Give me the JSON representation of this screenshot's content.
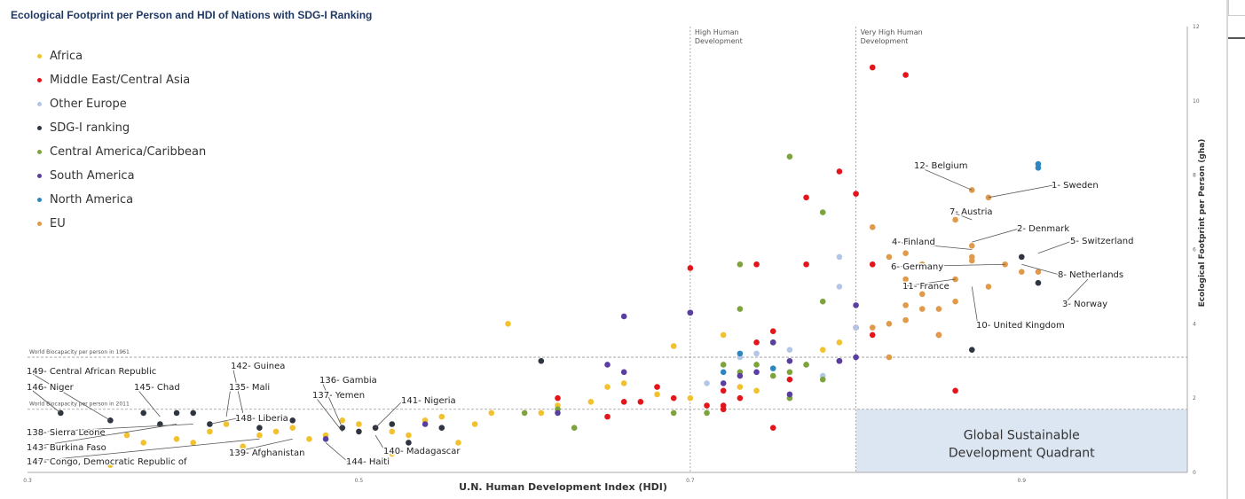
{
  "chart_data": {
    "type": "scatter",
    "title": "Ecological Footprint per Person and HDI of Nations with SDG-I Ranking",
    "xlabel": "U.N. Human Development Index (HDI)",
    "ylabel": "Ecological Footprint per Person (gha)",
    "xlim": [
      0.3,
      1.0
    ],
    "ylim": [
      0,
      12
    ],
    "x_ticks": [
      "0.3",
      "0.5",
      "0.7",
      "0.9"
    ],
    "y_ticks": [
      "0",
      "2",
      "4",
      "6",
      "8",
      "10",
      "12"
    ],
    "grid": false,
    "legend_position": "top-left",
    "regions": [
      {
        "label": "High Human Development",
        "x_start": 0.7
      },
      {
        "label": "Very High Human Development",
        "x_start": 0.8
      }
    ],
    "reference_lines": [
      {
        "label": "World Biocapacity per person in 1961",
        "y": 3.1
      },
      {
        "label": "World Biocapacity per person in 2011",
        "y": 1.7
      }
    ],
    "quadrant": {
      "label_line1": "Global Sustainable",
      "label_line2": "Development Quadrant",
      "x_range": [
        0.8,
        1.0
      ],
      "y_range": [
        0,
        1.7
      ]
    },
    "series": [
      {
        "name": "Africa",
        "color": "#f2c12e",
        "points": [
          [
            0.35,
            0.2
          ],
          [
            0.37,
            0.8
          ],
          [
            0.39,
            0.9
          ],
          [
            0.41,
            1.1
          ],
          [
            0.42,
            1.3
          ],
          [
            0.43,
            0.7
          ],
          [
            0.44,
            1.0
          ],
          [
            0.45,
            1.1
          ],
          [
            0.46,
            1.2
          ],
          [
            0.47,
            0.9
          ],
          [
            0.48,
            1.0
          ],
          [
            0.49,
            1.4
          ],
          [
            0.5,
            1.3
          ],
          [
            0.51,
            1.2
          ],
          [
            0.52,
            1.1
          ],
          [
            0.53,
            1.0
          ],
          [
            0.55,
            1.5
          ],
          [
            0.57,
            1.3
          ],
          [
            0.58,
            1.6
          ],
          [
            0.59,
            4.0
          ],
          [
            0.61,
            1.6
          ],
          [
            0.62,
            1.8
          ],
          [
            0.64,
            1.9
          ],
          [
            0.65,
            2.3
          ],
          [
            0.66,
            2.4
          ],
          [
            0.68,
            2.1
          ],
          [
            0.69,
            3.4
          ],
          [
            0.7,
            2.0
          ],
          [
            0.72,
            3.7
          ],
          [
            0.73,
            2.3
          ],
          [
            0.74,
            2.2
          ],
          [
            0.79,
            3.5
          ],
          [
            0.78,
            3.3
          ],
          [
            0.36,
            1.0
          ],
          [
            0.4,
            0.8
          ],
          [
            0.52,
            0.5
          ],
          [
            0.54,
            1.4
          ],
          [
            0.56,
            0.8
          ]
        ]
      },
      {
        "name": "Middle East/Central Asia",
        "color": "#e3141a",
        "points": [
          [
            0.81,
            10.9
          ],
          [
            0.83,
            10.7
          ],
          [
            0.79,
            8.1
          ],
          [
            0.8,
            7.5
          ],
          [
            0.77,
            7.4
          ],
          [
            0.7,
            5.5
          ],
          [
            0.74,
            5.6
          ],
          [
            0.77,
            5.6
          ],
          [
            0.81,
            5.6
          ],
          [
            0.8,
            3.9
          ],
          [
            0.81,
            3.7
          ],
          [
            0.75,
            3.8
          ],
          [
            0.74,
            3.5
          ],
          [
            0.72,
            2.2
          ],
          [
            0.69,
            2.0
          ],
          [
            0.67,
            1.9
          ],
          [
            0.66,
            1.9
          ],
          [
            0.62,
            2.0
          ],
          [
            0.65,
            1.5
          ],
          [
            0.72,
            1.8
          ],
          [
            0.71,
            1.8
          ],
          [
            0.72,
            1.7
          ],
          [
            0.68,
            2.3
          ],
          [
            0.76,
            2.5
          ],
          [
            0.85,
            3.7
          ],
          [
            0.86,
            2.2
          ],
          [
            0.73,
            2.0
          ],
          [
            0.75,
            1.2
          ]
        ]
      },
      {
        "name": "Other Europe",
        "color": "#b4c6e7",
        "points": [
          [
            0.79,
            5.8
          ],
          [
            0.79,
            5.0
          ],
          [
            0.8,
            3.9
          ],
          [
            0.76,
            3.3
          ],
          [
            0.74,
            3.2
          ],
          [
            0.78,
            2.6
          ],
          [
            0.77,
            2.9
          ],
          [
            0.73,
            3.1
          ],
          [
            0.71,
            2.4
          ]
        ]
      },
      {
        "name": "SDG-I ranking",
        "color": "#2e3440",
        "points": [
          [
            0.32,
            1.6
          ],
          [
            0.35,
            1.4
          ],
          [
            0.38,
            1.3
          ],
          [
            0.41,
            1.3
          ],
          [
            0.44,
            1.2
          ],
          [
            0.46,
            1.4
          ],
          [
            0.49,
            1.2
          ],
          [
            0.5,
            1.1
          ],
          [
            0.51,
            1.2
          ],
          [
            0.52,
            1.3
          ],
          [
            0.53,
            0.8
          ],
          [
            0.55,
            1.2
          ],
          [
            0.61,
            3.0
          ],
          [
            0.7,
            4.3
          ],
          [
            0.75,
            3.5
          ],
          [
            0.79,
            3.0
          ],
          [
            0.87,
            3.3
          ],
          [
            0.9,
            5.8
          ],
          [
            0.91,
            5.1
          ],
          [
            0.37,
            1.6
          ],
          [
            0.39,
            1.6
          ],
          [
            0.4,
            1.6
          ]
        ]
      },
      {
        "name": "Central America/Caribbean",
        "color": "#7da33c",
        "points": [
          [
            0.76,
            8.5
          ],
          [
            0.78,
            7.0
          ],
          [
            0.73,
            5.6
          ],
          [
            0.78,
            4.6
          ],
          [
            0.73,
            4.4
          ],
          [
            0.72,
            2.9
          ],
          [
            0.74,
            2.9
          ],
          [
            0.75,
            2.6
          ],
          [
            0.78,
            2.5
          ],
          [
            0.76,
            2.7
          ],
          [
            0.77,
            2.9
          ],
          [
            0.62,
            1.7
          ],
          [
            0.6,
            1.6
          ],
          [
            0.63,
            1.2
          ],
          [
            0.69,
            1.6
          ],
          [
            0.71,
            1.6
          ],
          [
            0.76,
            2.0
          ],
          [
            0.73,
            2.7
          ]
        ]
      },
      {
        "name": "South America",
        "color": "#5b3fa0",
        "points": [
          [
            0.66,
            4.2
          ],
          [
            0.65,
            2.9
          ],
          [
            0.66,
            2.7
          ],
          [
            0.72,
            2.4
          ],
          [
            0.74,
            2.7
          ],
          [
            0.75,
            3.5
          ],
          [
            0.76,
            3.0
          ],
          [
            0.73,
            2.6
          ],
          [
            0.76,
            2.1
          ],
          [
            0.7,
            4.3
          ],
          [
            0.62,
            1.6
          ],
          [
            0.79,
            3.0
          ],
          [
            0.8,
            4.5
          ],
          [
            0.8,
            3.1
          ],
          [
            0.54,
            1.3
          ],
          [
            0.48,
            0.9
          ]
        ]
      },
      {
        "name": "North America",
        "color": "#2e86c1",
        "points": [
          [
            0.91,
            8.2
          ],
          [
            0.91,
            8.3
          ],
          [
            0.75,
            2.8
          ],
          [
            0.73,
            3.2
          ],
          [
            0.72,
            2.7
          ]
        ]
      },
      {
        "name": "EU",
        "color": "#e09a4a",
        "points": [
          [
            0.87,
            7.6
          ],
          [
            0.88,
            7.4
          ],
          [
            0.86,
            6.8
          ],
          [
            0.84,
            6.2
          ],
          [
            0.84,
            5.6
          ],
          [
            0.83,
            5.9
          ],
          [
            0.83,
            5.2
          ],
          [
            0.86,
            5.2
          ],
          [
            0.87,
            6.1
          ],
          [
            0.87,
            5.8
          ],
          [
            0.87,
            5.7
          ],
          [
            0.89,
            5.6
          ],
          [
            0.9,
            5.4
          ],
          [
            0.91,
            5.4
          ],
          [
            0.88,
            5.0
          ],
          [
            0.81,
            6.6
          ],
          [
            0.82,
            5.8
          ],
          [
            0.83,
            4.5
          ],
          [
            0.84,
            4.4
          ],
          [
            0.85,
            4.4
          ],
          [
            0.86,
            4.6
          ],
          [
            0.84,
            4.8
          ],
          [
            0.83,
            4.1
          ],
          [
            0.82,
            4.0
          ],
          [
            0.81,
            3.9
          ],
          [
            0.85,
            3.7
          ],
          [
            0.82,
            3.1
          ]
        ]
      }
    ],
    "annotations": [
      {
        "label": "12- Belgium",
        "x": 0.87,
        "y": 7.6
      },
      {
        "label": "1- Sweden",
        "x": 0.88,
        "y": 7.4
      },
      {
        "label": "7- Austria",
        "x": 0.87,
        "y": 6.8
      },
      {
        "label": "2- Denmark",
        "x": 0.87,
        "y": 6.2
      },
      {
        "label": "4- Finland",
        "x": 0.87,
        "y": 6.0
      },
      {
        "label": "5- Switzerland",
        "x": 0.91,
        "y": 5.9
      },
      {
        "label": "6- Germany",
        "x": 0.89,
        "y": 5.6
      },
      {
        "label": "8- Netherlands",
        "x": 0.9,
        "y": 5.6
      },
      {
        "label": "11- France",
        "x": 0.86,
        "y": 5.2
      },
      {
        "label": "3- Norway",
        "x": 0.94,
        "y": 5.2
      },
      {
        "label": "10- United Kingdom",
        "x": 0.87,
        "y": 5.0
      },
      {
        "label": "142- Guinea",
        "x": 0.43,
        "y": 1.6
      },
      {
        "label": "149- Central African Republic",
        "x": 0.35,
        "y": 1.4
      },
      {
        "label": "145- Chad",
        "x": 0.38,
        "y": 1.5
      },
      {
        "label": "135- Mali",
        "x": 0.42,
        "y": 1.5
      },
      {
        "label": "146- Niger",
        "x": 0.32,
        "y": 1.6
      },
      {
        "label": "136- Gambia",
        "x": 0.49,
        "y": 1.2
      },
      {
        "label": "137- Yemen",
        "x": 0.49,
        "y": 1.1
      },
      {
        "label": "141- Nigeria",
        "x": 0.51,
        "y": 1.2
      },
      {
        "label": "148- Liberia",
        "x": 0.41,
        "y": 1.3
      },
      {
        "label": "138- Sierra Leone",
        "x": 0.4,
        "y": 1.3
      },
      {
        "label": "143- Burkina Faso",
        "x": 0.39,
        "y": 1.3
      },
      {
        "label": "139- Afghanistan",
        "x": 0.46,
        "y": 0.9
      },
      {
        "label": "140- Madagascar",
        "x": 0.51,
        "y": 1.0
      },
      {
        "label": "147- Congo, Democratic Republic of",
        "x": 0.44,
        "y": 0.9
      },
      {
        "label": "144- Haiti",
        "x": 0.48,
        "y": 0.8
      }
    ]
  }
}
